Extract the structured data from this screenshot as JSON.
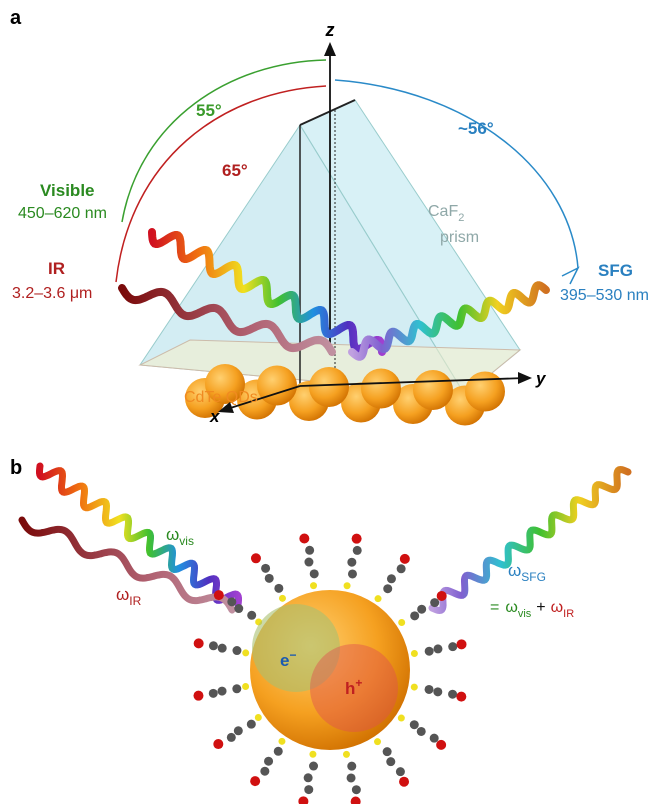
{
  "panel_a": {
    "label": "a",
    "axes": {
      "z": "z",
      "x": "x",
      "y": "y"
    },
    "angles": {
      "visible": "55°",
      "ir": "65°",
      "sfg": "~56°"
    },
    "beams": {
      "visible": {
        "name": "Visible",
        "range": "450–620 nm"
      },
      "ir": {
        "name": "IR",
        "range": "3.2–3.6 μm"
      },
      "sfg": {
        "name": "SFG",
        "range": "395–530 nm"
      }
    },
    "prism": {
      "formula": "CaF",
      "subscript": "2",
      "word": "prism"
    },
    "sample": "CdTe QDs"
  },
  "panel_b": {
    "label": "b",
    "omega_vis": {
      "symbol": "ω",
      "sub": "vis"
    },
    "omega_ir": {
      "symbol": "ω",
      "sub": "IR"
    },
    "omega_sfg": {
      "symbol": "ω",
      "sub": "SFG"
    },
    "equation": {
      "equals": "=",
      "s1": "ω",
      "sub1": "vis",
      "plus": "+",
      "s2": "ω",
      "sub2": "IR"
    },
    "electron": {
      "base": "e",
      "sup": "−"
    },
    "hole": {
      "base": "h",
      "sup": "+"
    }
  }
}
